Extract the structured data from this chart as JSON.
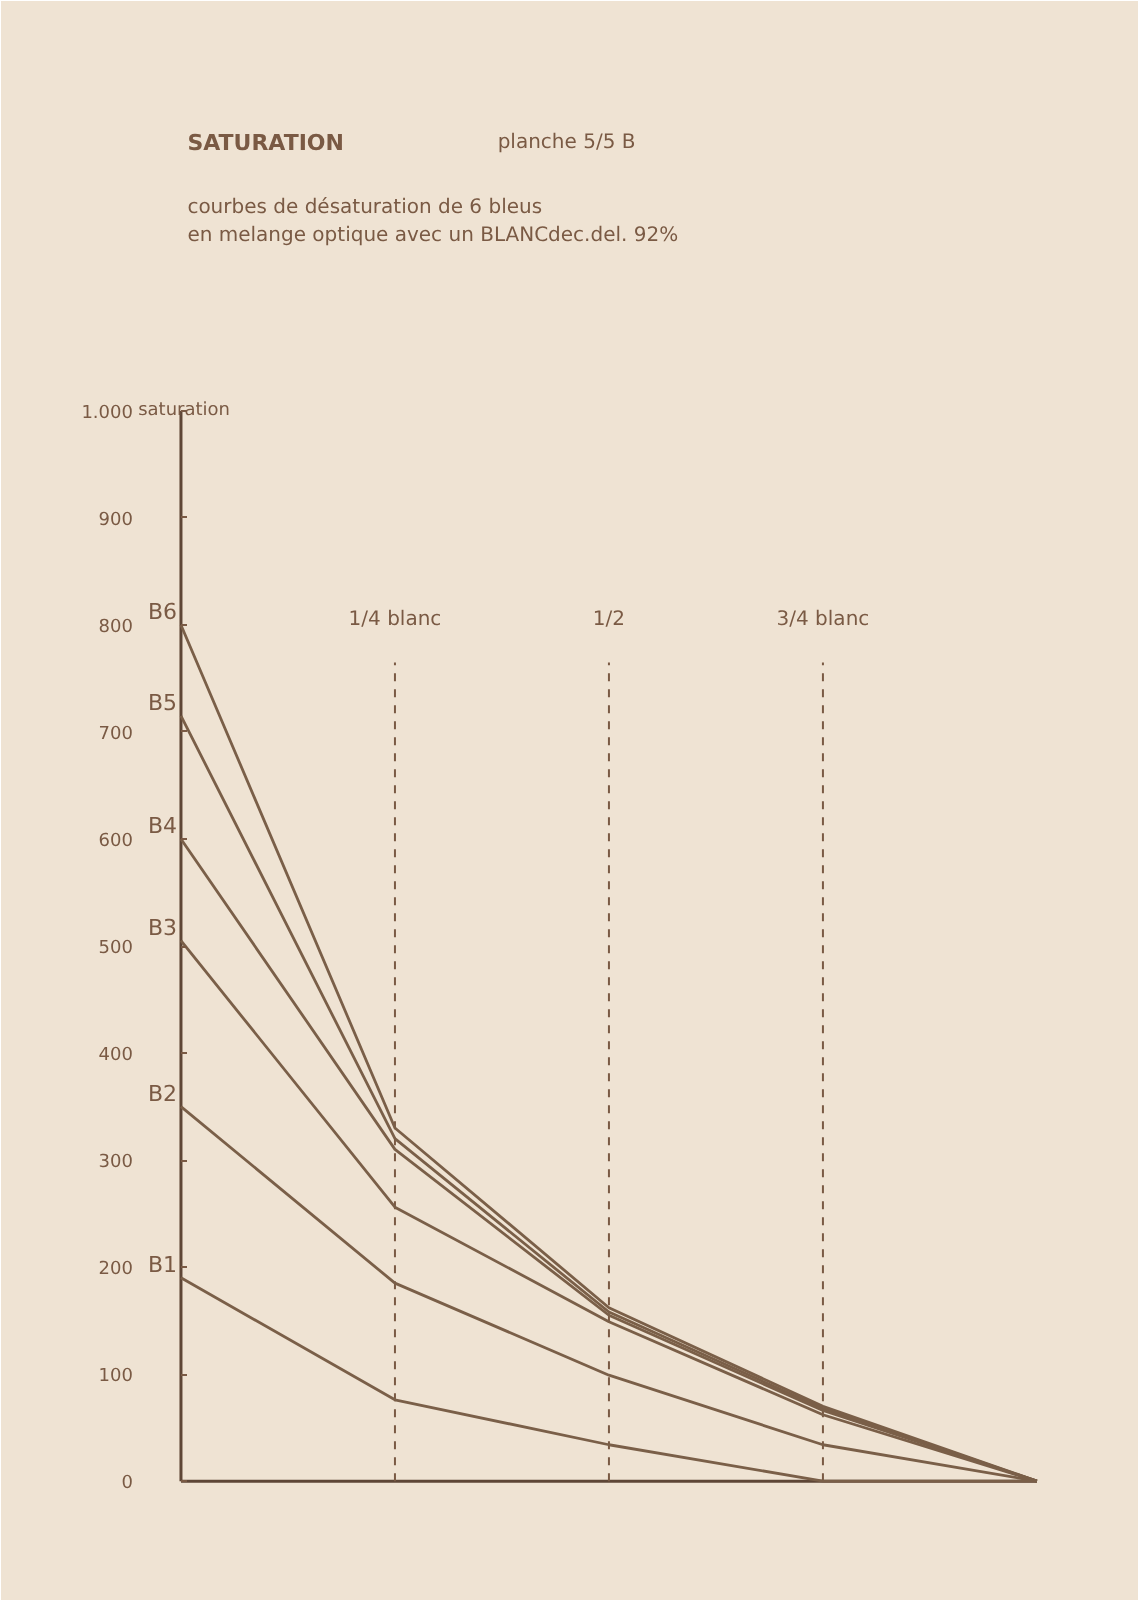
{
  "chart_data": {
    "type": "line",
    "title": "SATURATION",
    "subtitle": "courbes de désaturation  de 6 bleus\nen melange optique avec un BLANCdec.del. 92%",
    "annotations": [
      "planche 5/5 B"
    ],
    "ylabel": "saturation",
    "categories": [
      null,
      "1/4 blanc",
      "1/2",
      "3/4 blanc",
      null
    ],
    "ylim": [
      0,
      1000
    ],
    "yticks": [
      0,
      100,
      200,
      300,
      400,
      500,
      600,
      700,
      800,
      900,
      {
        "value": 1000,
        "label": "1.000"
      }
    ],
    "grid": "x",
    "legend": "left",
    "marker": "none",
    "line_style": "solid",
    "series": [
      {
        "name": "B6",
        "color": "#7a5f48",
        "values": [
          800,
          330,
          162,
          70,
          0
        ]
      },
      {
        "name": "B5",
        "color": "#7a5f48",
        "values": [
          715,
          320,
          158,
          68,
          0
        ]
      },
      {
        "name": "B4",
        "color": "#7a5f48",
        "values": [
          600,
          310,
          155,
          66,
          0
        ]
      },
      {
        "name": "B3",
        "color": "#7a5f48",
        "values": [
          505,
          256,
          149,
          62,
          0
        ]
      },
      {
        "name": "B2",
        "color": "#7a5f48",
        "values": [
          350,
          185,
          99,
          34,
          0
        ]
      },
      {
        "name": "B1",
        "color": "#7a5f48",
        "values": [
          190,
          76,
          34,
          0,
          0
        ]
      }
    ]
  }
}
